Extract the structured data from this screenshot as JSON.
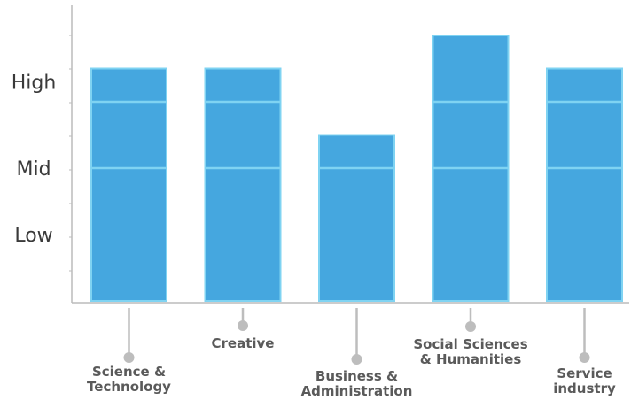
{
  "chart_data": {
    "type": "bar",
    "title": "",
    "xlabel": "",
    "ylabel": "",
    "categories": [
      [
        "Science &",
        "Technology"
      ],
      [
        "Creative"
      ],
      [
        "Business &",
        "Administration"
      ],
      [
        "Social Sciences",
        "& Humanities"
      ],
      [
        "Service",
        "industry"
      ]
    ],
    "values": [
      3.5,
      3.5,
      2.5,
      4.0,
      3.5
    ],
    "segment_boundaries": [
      2.0,
      3.0
    ],
    "y_ticks": [
      {
        "value": 1.0,
        "label": "Low"
      },
      {
        "value": 2.0,
        "label": "Mid"
      },
      {
        "value": 3.3,
        "label": "High"
      }
    ],
    "ylim": [
      0,
      4.4
    ],
    "grid": false,
    "colors": {
      "bar": "#45a7df",
      "bar_edge": "#7fd3f2",
      "axis": "#bbbbbb",
      "connector": "#bdbdbd",
      "label": "#5a5a5a",
      "y_label": "#3a3a3a"
    }
  }
}
